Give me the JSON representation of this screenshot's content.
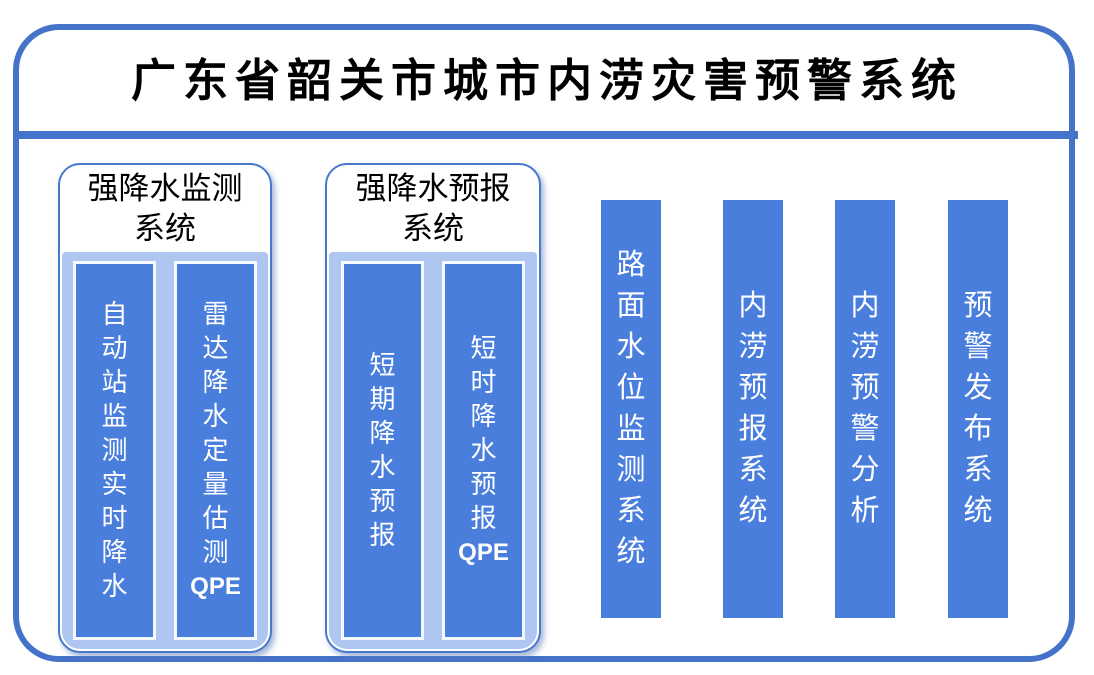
{
  "title": "广东省韶关市城市内涝灾害预警系统",
  "colors": {
    "frame_border": "#4573C9",
    "separator": "#4573C9",
    "bar_fill": "#4A7EDC",
    "group_body_fill": "#AEC6F0",
    "group_border": "#4779CC",
    "bar_text": "#FFFFFF",
    "title_text": "#000000"
  },
  "groups": [
    {
      "header": "强降水监测系统",
      "header_lines": [
        "强降水监测",
        "系统"
      ],
      "bars": [
        {
          "label": "自动站监测实时降水",
          "suffix": ""
        },
        {
          "label": "雷达降水定量估测",
          "suffix": "QPE"
        }
      ]
    },
    {
      "header": "强降水预报系统",
      "header_lines": [
        "强降水预报",
        "系统"
      ],
      "bars": [
        {
          "label": "短期降水预报",
          "suffix": ""
        },
        {
          "label": "短时降水预报",
          "suffix": "QPE"
        }
      ]
    }
  ],
  "pipeline_bars": [
    {
      "label": "路面水位监测系统"
    },
    {
      "label": "内涝预报系统"
    },
    {
      "label": "内涝预警分析"
    },
    {
      "label": "预警发布系统"
    }
  ]
}
